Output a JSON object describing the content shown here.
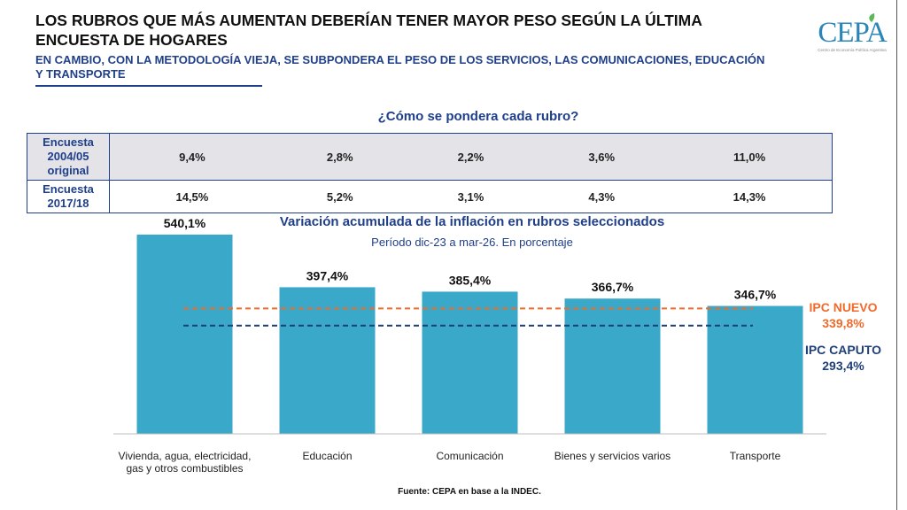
{
  "header": {
    "title": "LOS RUBROS QUE MÁS AUMENTAN DEBERÍAN TENER MAYOR PESO SEGÚN LA ÚLTIMA ENCUESTA DE HOGARES",
    "subtitle": "EN CAMBIO, CON LA METODOLOGÍA VIEJA, SE SUBPONDERA EL PESO DE LOS SERVICIOS, LAS COMUNICACIONES, EDUCACIÓN Y TRANSPORTE"
  },
  "logo": {
    "name": "CEPA",
    "tagline": "Centro de Economía Política Argentina"
  },
  "colors": {
    "bar": "#3aa8c9",
    "ipc_nuevo": "#f06a2a",
    "ipc_caputo": "#1f3f7a",
    "text_dark": "#111111",
    "text_blue": "#1f3f8a"
  },
  "weights_table": {
    "title": "¿Cómo se pondera cada rubro?",
    "rows": [
      {
        "label": "Encuesta 2004/05 original",
        "values": [
          "9,4%",
          "2,8%",
          "2,2%",
          "3,6%",
          "11,0%"
        ]
      },
      {
        "label": "Encuesta 2017/18",
        "values": [
          "14,5%",
          "5,2%",
          "3,1%",
          "4,3%",
          "14,3%"
        ]
      }
    ]
  },
  "chart_data": {
    "type": "bar",
    "title": "Variación acumulada de la inflación en  rubros seleccionados",
    "subtitle": "Período dic-23 a mar-26. En porcentaje",
    "categories": [
      "Vivienda, agua, electricidad, gas y otros combustibles",
      "Educación",
      "Comunicación",
      "Bienes y servicios varios",
      "Transporte"
    ],
    "category_lines": [
      [
        "Vivienda, agua, electricidad,",
        "gas y otros combustibles"
      ],
      [
        "Educación"
      ],
      [
        "Comunicación"
      ],
      [
        "Bienes y servicios varios"
      ],
      [
        "Transporte"
      ]
    ],
    "values": [
      540.1,
      397.4,
      385.4,
      366.7,
      346.7
    ],
    "value_labels": [
      "540,1%",
      "397,4%",
      "385,4%",
      "366,7%",
      "346,7%"
    ],
    "reference_lines": [
      {
        "name": "IPC NUEVO",
        "value": 339.8,
        "label": "339,8%",
        "color": "#f06a2a"
      },
      {
        "name": "IPC CAPUTO",
        "value": 293.4,
        "label": "293,4%",
        "color": "#1f3f7a"
      }
    ],
    "ylim": [
      0,
      600
    ],
    "xlabel": "",
    "ylabel": "",
    "grid": false
  },
  "footer": {
    "source": "Fuente: CEPA en base a la INDEC."
  }
}
